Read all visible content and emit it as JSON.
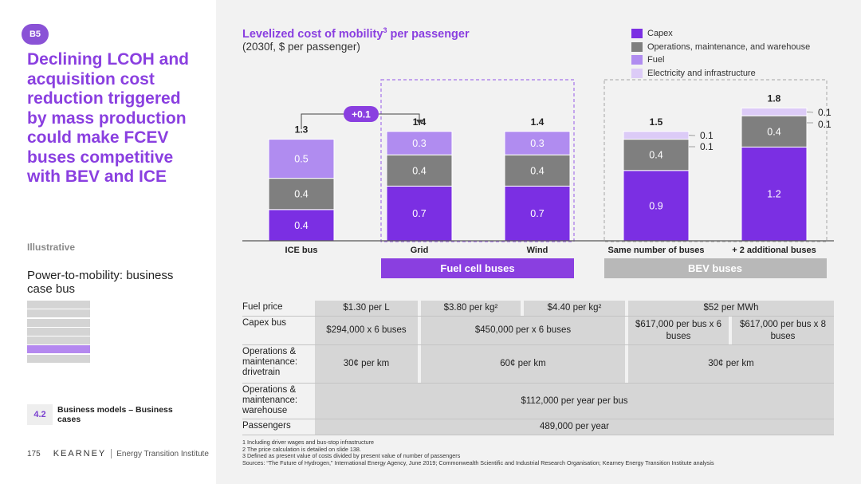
{
  "badge": "B5",
  "headline": "Declining LCOH and acquisition cost reduction triggered by mass production could make FCEV buses competitive with BEV and ICE",
  "illustrative": "Illustrative",
  "section_title": "Power-to-mobility: business case bus",
  "subsection": {
    "num": "4.2",
    "label": "Business models – Business cases"
  },
  "footer": {
    "page": "175",
    "brand": "KEARNEY",
    "institute": "Energy Transition Institute"
  },
  "chart": {
    "title": "Levelized cost of mobility",
    "title_sup": "3",
    "title_suffix": " per passenger",
    "subtitle": "(2030f, $ per passenger)"
  },
  "colors": {
    "capex": "#7b2fe3",
    "om": "#7f7f7f",
    "fuel": "#b08cf0",
    "electricity": "#dccbf7",
    "accent": "#8a3fe0"
  },
  "legend": [
    {
      "name": "Capex",
      "color": "#7b2fe3"
    },
    {
      "name": "Operations, maintenance, and warehouse",
      "color": "#7f7f7f"
    },
    {
      "name": "Fuel",
      "color": "#b08cf0"
    },
    {
      "name": "Electricity and infrastructure",
      "color": "#dccbf7"
    }
  ],
  "chart_data": {
    "type": "bar",
    "stacked": true,
    "categories": [
      "ICE bus",
      "Grid",
      "Wind",
      "Same number of buses",
      "+ 2 additional buses"
    ],
    "series": [
      {
        "name": "Capex",
        "values": [
          0.4,
          0.7,
          0.7,
          0.9,
          1.2
        ]
      },
      {
        "name": "Operations, maintenance, and warehouse",
        "values": [
          0.4,
          0.4,
          0.4,
          0.4,
          0.4
        ]
      },
      {
        "name": "Fuel",
        "values": [
          0.5,
          0.3,
          0.3,
          0,
          0
        ]
      },
      {
        "name": "Electricity and infrastructure",
        "values": [
          0,
          0,
          0,
          0.1,
          0.1
        ]
      }
    ],
    "totals": [
      "1.3",
      "1.4",
      "1.4",
      "1.5",
      "1.8"
    ],
    "extra_labels": [
      "0.1",
      "0.1"
    ],
    "annotation": "+0.1",
    "groups": [
      {
        "label": "Fuel cell buses",
        "categories": [
          "Grid",
          "Wind"
        ]
      },
      {
        "label": "BEV buses",
        "categories": [
          "Same number of buses",
          "+ 2 additional buses"
        ]
      }
    ],
    "ylim": [
      0,
      1.9
    ]
  },
  "table": {
    "rows": [
      {
        "label": "Fuel price",
        "cells": [
          "$1.30 per L",
          "$3.80 per kg²",
          "$4.40 per kg²",
          "$52 per MWh"
        ]
      },
      {
        "label": "Capex bus",
        "cells": [
          "$294,000 x 6 buses",
          "$450,000 per x 6 buses",
          "$617,000 per bus x 6 buses",
          "$617,000 per bus x 8 buses"
        ]
      },
      {
        "label": "Operations & maintenance: drivetrain",
        "cells": [
          "30¢ per km",
          "60¢ per km",
          "30¢ per km"
        ]
      },
      {
        "label": "Operations & maintenance: warehouse",
        "cells": [
          "$112,000 per year per bus"
        ]
      },
      {
        "label": "Passengers",
        "cells": [
          "489,000 per year"
        ]
      }
    ]
  },
  "footnotes": [
    "1 Including driver wages and bus-stop infrastructure",
    "2 The price calculation is detailed on slide 138.",
    "3 Defined as present value of costs divided by present value of number of passengers",
    "Sources: “The Future of Hydrogen,” International Energy Agency, June 2019; Commonwealth Scientific and Industrial Research Organisation; Kearney Energy Transition Institute analysis"
  ]
}
